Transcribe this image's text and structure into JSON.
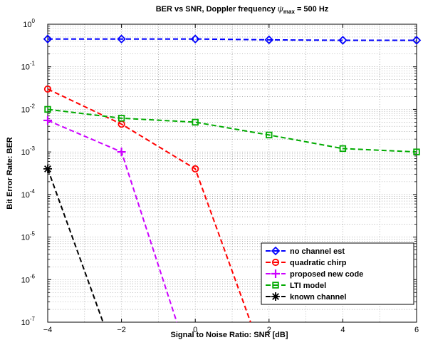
{
  "chart_data": {
    "type": "line",
    "title": {
      "main": "BER vs SNR, Doppler frequency ",
      "symbol": "ψ",
      "subscript": "max",
      "suffix": " = 500 Hz"
    },
    "xlabel": "Signal to Noise Ratio: SNR [dB]",
    "ylabel": "Bit Error Rate: BER",
    "xlim": [
      -4,
      6
    ],
    "ylim": [
      1e-07,
      1
    ],
    "yscale": "log",
    "grid": true,
    "legend_position": "lower-right",
    "x_ticks": [
      {
        "v": -4,
        "label": "−4"
      },
      {
        "v": -2,
        "label": "−2"
      },
      {
        "v": 0,
        "label": "0"
      },
      {
        "v": 2,
        "label": "2"
      },
      {
        "v": 4,
        "label": "4"
      },
      {
        "v": 6,
        "label": "6"
      }
    ],
    "y_ticks": [
      {
        "exp": 0,
        "base": "10",
        "sup": "0"
      },
      {
        "exp": -1,
        "base": "10",
        "sup": "-1"
      },
      {
        "exp": -2,
        "base": "10",
        "sup": "-2"
      },
      {
        "exp": -3,
        "base": "10",
        "sup": "-3"
      },
      {
        "exp": -4,
        "base": "10",
        "sup": "-4"
      },
      {
        "exp": -5,
        "base": "10",
        "sup": "-5"
      },
      {
        "exp": -6,
        "base": "10",
        "sup": "-6"
      },
      {
        "exp": -7,
        "base": "10",
        "sup": "-7"
      }
    ],
    "series": [
      {
        "name": "no channel est",
        "color": "#0000ff",
        "marker": "diamond",
        "x": [
          -4,
          -2,
          0,
          2,
          4,
          6
        ],
        "y": [
          0.45,
          0.45,
          0.45,
          0.43,
          0.42,
          0.42
        ]
      },
      {
        "name": "quadratic chirp",
        "color": "#ff0000",
        "marker": "circle",
        "x": [
          -4,
          -2,
          0,
          1.5
        ],
        "y": [
          0.03,
          0.0045,
          0.0004,
          1e-07
        ]
      },
      {
        "name": "proposed new code",
        "color": "#cc00ff",
        "marker": "plus",
        "x": [
          -4,
          -2,
          -0.5
        ],
        "y": [
          0.0055,
          0.001,
          1e-07
        ]
      },
      {
        "name": "LTI model",
        "color": "#00aa00",
        "marker": "square",
        "x": [
          -4,
          -2,
          0,
          2,
          4,
          6
        ],
        "y": [
          0.01,
          0.0062,
          0.005,
          0.0025,
          0.0012,
          0.001
        ]
      },
      {
        "name": "known channel",
        "color": "#000000",
        "marker": "asterisk",
        "x": [
          -4,
          -2.5
        ],
        "y": [
          0.0004,
          1e-07
        ]
      }
    ]
  }
}
